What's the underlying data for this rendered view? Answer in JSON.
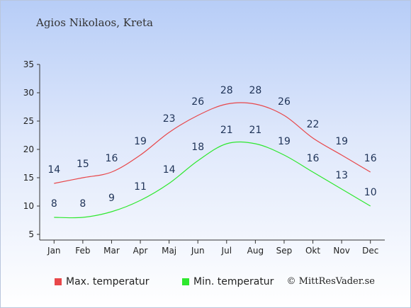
{
  "chart_data": {
    "type": "line",
    "title": "Agios Nikolaos, Kreta",
    "categories": [
      "Jan",
      "Feb",
      "Mar",
      "Apr",
      "Maj",
      "Jun",
      "Jul",
      "Aug",
      "Sep",
      "Okt",
      "Nov",
      "Dec"
    ],
    "series": [
      {
        "name": "Max. temperatur",
        "color": "#e8474a",
        "values": [
          14,
          15,
          16,
          19,
          23,
          26,
          28,
          28,
          26,
          22,
          19,
          16
        ]
      },
      {
        "name": "Min. temperatur",
        "color": "#2ee82e",
        "values": [
          8,
          8,
          9,
          11,
          14,
          18,
          21,
          21,
          19,
          16,
          13,
          10
        ]
      }
    ],
    "ylim": [
      5,
      35
    ],
    "yticks": [
      5,
      10,
      15,
      20,
      25,
      30,
      35
    ],
    "grid": false,
    "legend": "bottom",
    "credit": "© MittResVader.se"
  }
}
